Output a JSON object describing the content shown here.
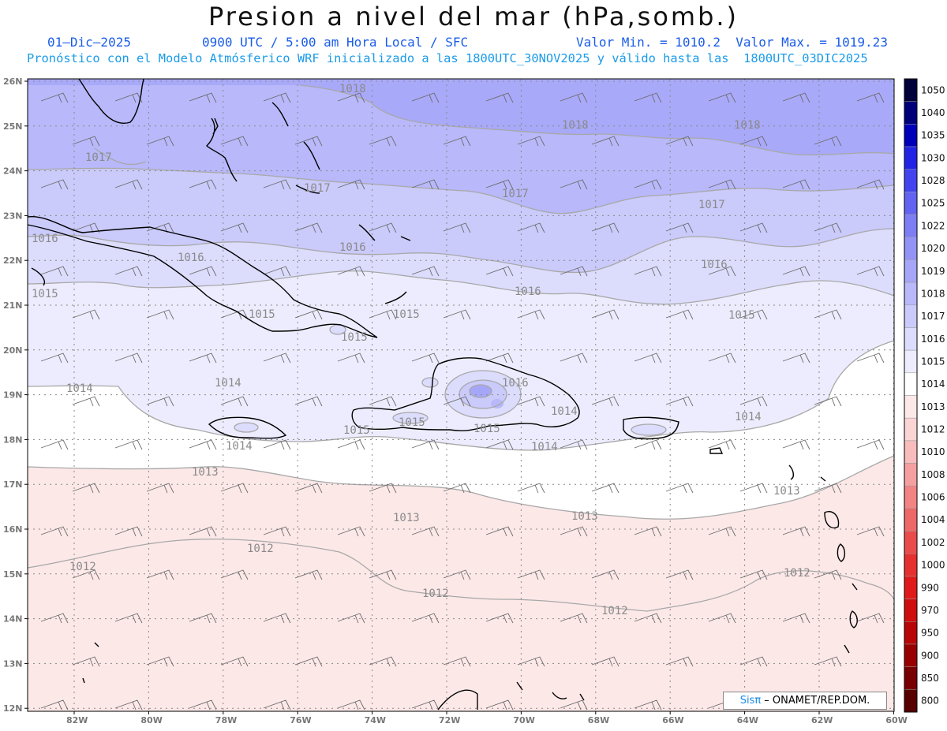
{
  "title": "Presion a nivel del mar (hPa,somb.)",
  "header": {
    "date": "01–Dic–2025",
    "time": "0900 UTC / 5:00 am Hora Local / SFC",
    "minmax": "Valor Min. = 1010.2  Valor Max. = 1019.23",
    "model": "Pronóstico con el Modelo Atmósferico WRF inicializado a las 1800UTC_30NOV2025 y válido hasta las  1800UTC_03DIC2025"
  },
  "lat_labels": [
    "26N",
    "25N",
    "24N",
    "23N",
    "22N",
    "21N",
    "20N",
    "19N",
    "18N",
    "17N",
    "16N",
    "15N",
    "14N",
    "13N",
    "12N"
  ],
  "lon_labels": [
    "82W",
    "80W",
    "78W",
    "76W",
    "74W",
    "72W",
    "70W",
    "68W",
    "66W",
    "64W",
    "62W",
    "60W"
  ],
  "colorbar": {
    "levels": [
      "1050",
      "1040",
      "1035",
      "1030",
      "1028",
      "1025",
      "1022",
      "1020",
      "1019",
      "1018",
      "1017",
      "1016",
      "1015",
      "1014",
      "1013",
      "1012",
      "1010",
      "1008",
      "1006",
      "1004",
      "1002",
      "1000",
      "990",
      "970",
      "950",
      "900",
      "850",
      "800"
    ],
    "colors": [
      "#00003a",
      "#00007a",
      "#0000b8",
      "#2323e6",
      "#4343f0",
      "#6363f2",
      "#7e7ef4",
      "#9393f6",
      "#a6a6f8",
      "#b8b8fa",
      "#cacafb",
      "#dcdcfd",
      "#ececfe",
      "#ffffff",
      "#fde8e8",
      "#fbd4d4",
      "#f8bcbc",
      "#f5a0a0",
      "#f28484",
      "#ee6868",
      "#ea4c4c",
      "#e63030",
      "#e01a1a",
      "#d00d0d",
      "#b80606",
      "#980000",
      "#780000",
      "#580000"
    ]
  },
  "isobar_labels": [
    "1018",
    "1018",
    "1018",
    "1017",
    "1017",
    "1017",
    "1017",
    "1016",
    "1016",
    "1016",
    "1016",
    "1016",
    "1015",
    "1015",
    "1015",
    "1015",
    "1015",
    "1015",
    "1015",
    "1014",
    "1014",
    "1014",
    "1014",
    "1014",
    "1014",
    "1013",
    "1013",
    "1013",
    "1013",
    "1012",
    "1012",
    "1012",
    "1012",
    "1012",
    "1016",
    "1015"
  ],
  "credit": {
    "brand": "Sisπ",
    "text": " – ONAMET/REP.DOM."
  },
  "colors": {
    "title": "#111111",
    "header_blue": "#1a5ce8",
    "header_light_blue": "#1a9be8"
  }
}
